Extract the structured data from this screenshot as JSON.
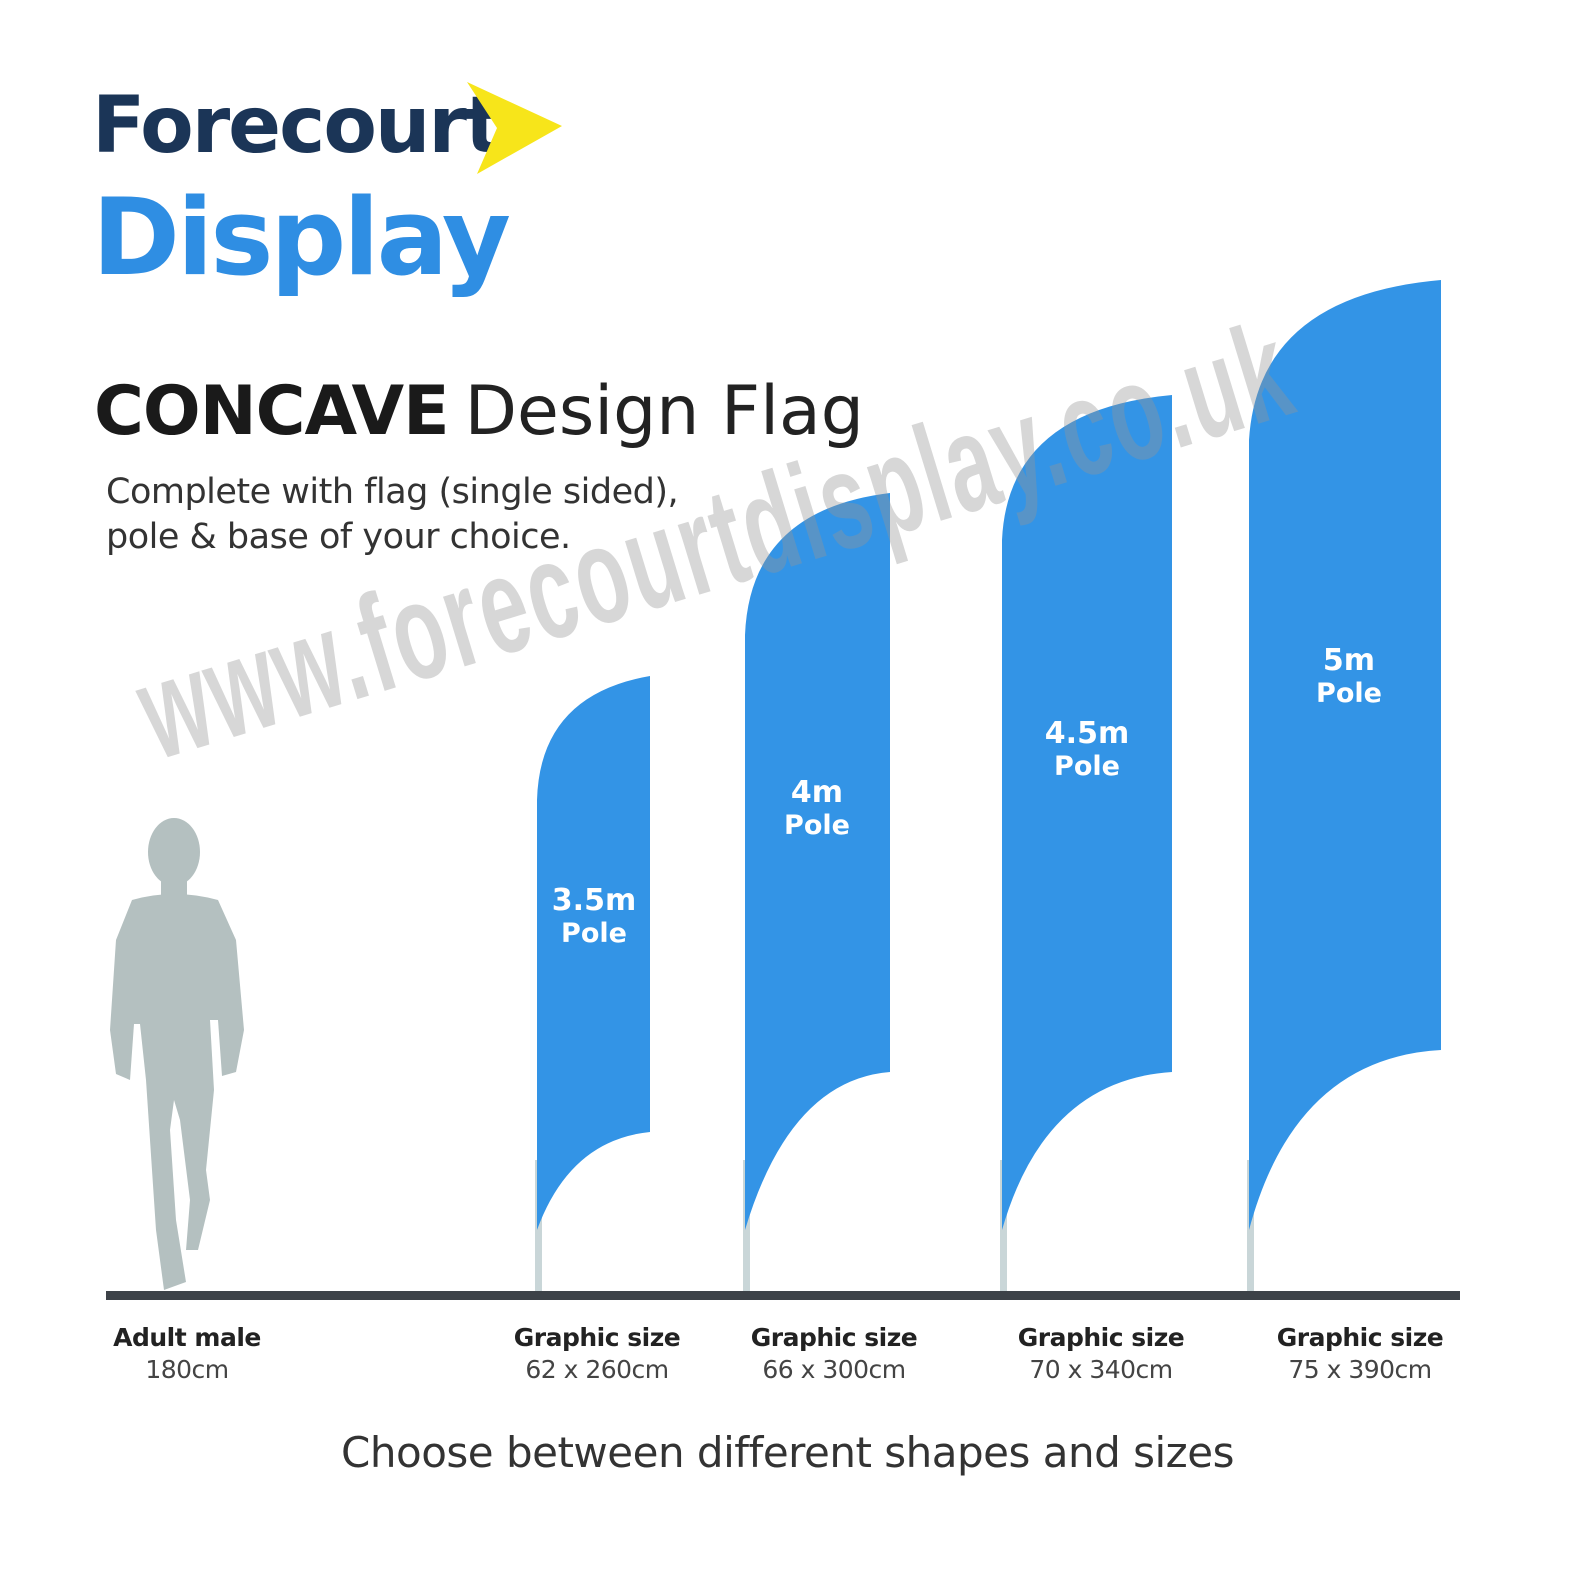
{
  "brand": {
    "line1": "Forecourt",
    "line2": "Display",
    "navy": "#1b3557",
    "blue": "#2f8ee3",
    "arrow_color": "#f7e51a"
  },
  "heading": {
    "bold": "CONCAVE",
    "light": "Design Flag"
  },
  "subtitle": {
    "line1": "Complete with flag (single sided),",
    "line2": "pole & base of your choice."
  },
  "watermark": "www.forecourtdisplay.co.uk",
  "figure": {
    "person_color": "#b4c0c0",
    "flag_color": "#3394e6",
    "pole_color": "#c9d6d8"
  },
  "flags": [
    {
      "size": "3.5m",
      "unit": "Pole",
      "caption_title": "Graphic size",
      "caption_value": "62 x 260cm"
    },
    {
      "size": "4m",
      "unit": "Pole",
      "caption_title": "Graphic size",
      "caption_value": "66 x 300cm"
    },
    {
      "size": "4.5m",
      "unit": "Pole",
      "caption_title": "Graphic size",
      "caption_value": "70 x 340cm"
    },
    {
      "size": "5m",
      "unit": "Pole",
      "caption_title": "Graphic size",
      "caption_value": "75 x 390cm"
    }
  ],
  "person": {
    "caption_title": "Adult male",
    "caption_value": "180cm"
  },
  "tagline": "Choose between different shapes and sizes"
}
